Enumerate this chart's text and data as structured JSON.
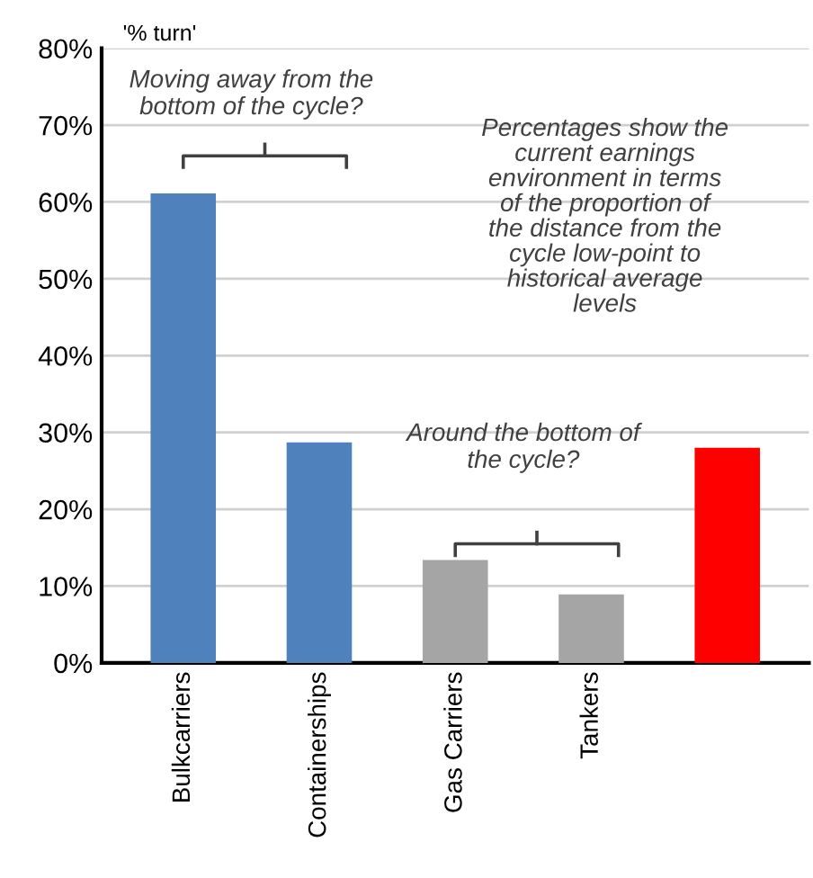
{
  "chart_data": {
    "type": "bar",
    "ylabel": "'% turn'",
    "categories": [
      "Bulkcarriers",
      "Containerships",
      "Gas Carriers",
      "Tankers",
      null
    ],
    "values": [
      61.1,
      28.7,
      13.4,
      8.9,
      28.0
    ],
    "colors": [
      "#4f81bd",
      "#4f81bd",
      "#a5a5a5",
      "#a5a5a5",
      "#ff0000"
    ],
    "ylim": [
      0,
      80
    ],
    "yticks": [
      {
        "value": 0,
        "label": "0%"
      },
      {
        "value": 10,
        "label": "10%"
      },
      {
        "value": 20,
        "label": "20%"
      },
      {
        "value": 30,
        "label": "30%"
      },
      {
        "value": 40,
        "label": "40%"
      },
      {
        "value": 50,
        "label": "50%"
      },
      {
        "value": 60,
        "label": "60%"
      },
      {
        "value": 70,
        "label": "70%"
      },
      {
        "value": 80,
        "label": "80%"
      }
    ],
    "grid": "y",
    "annotations": [
      "Moving away from the bottom of the cycle?",
      "Percentages show the current earnings environment in terms of the proportion of the distance from the cycle low-point to historical average levels",
      "Around the bottom of the cycle?"
    ]
  }
}
